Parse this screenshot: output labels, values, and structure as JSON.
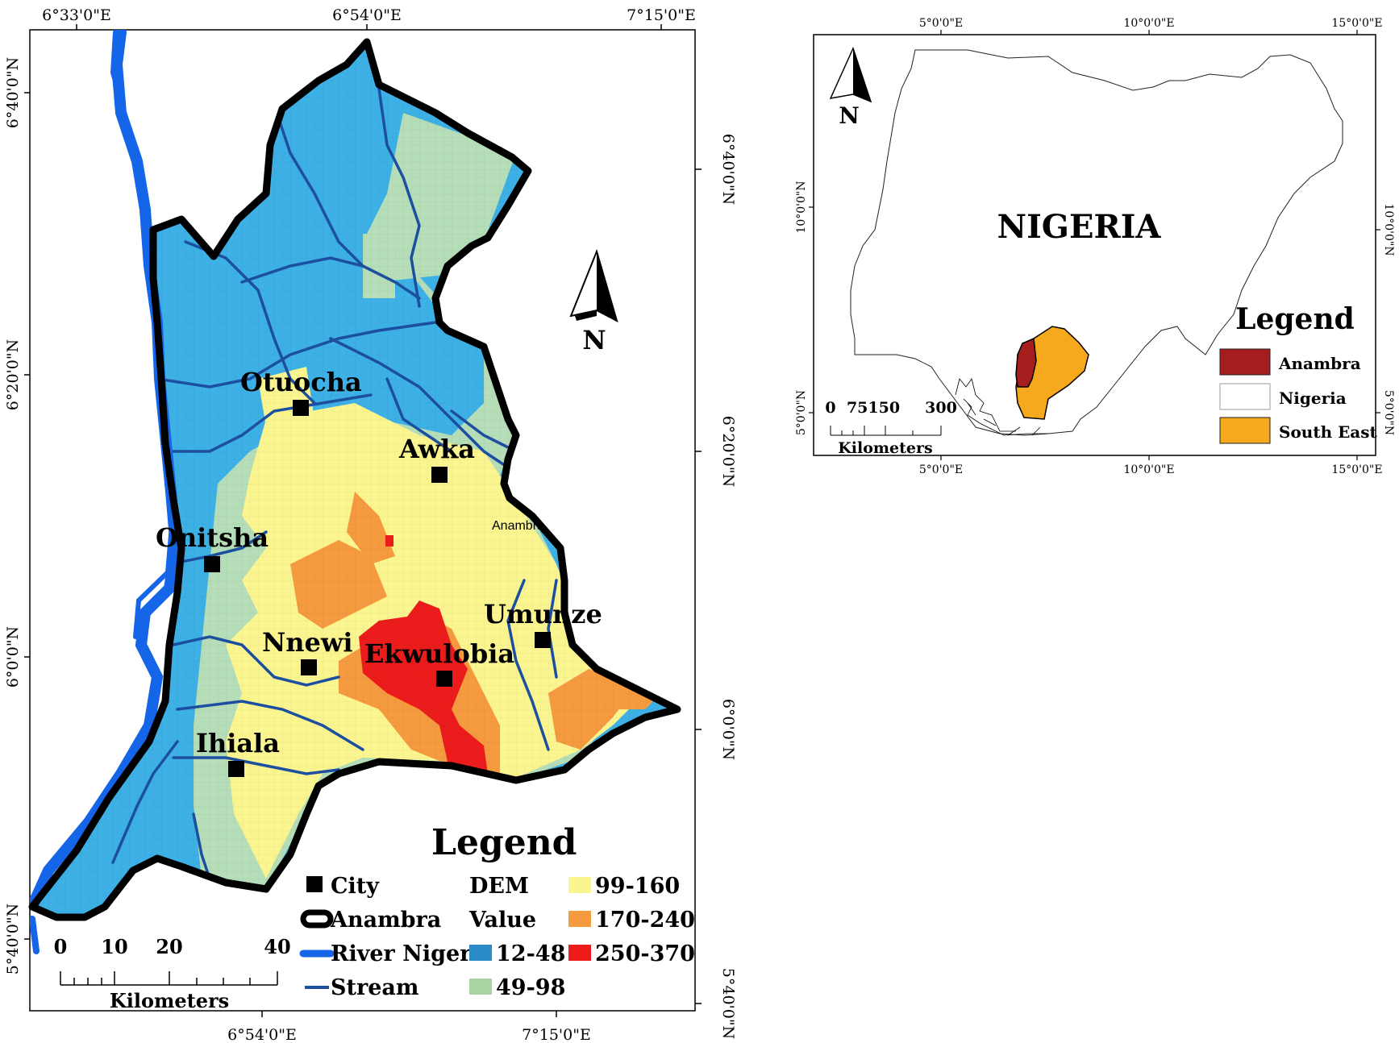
{
  "main_map": {
    "top_ticks": [
      "6°33'0\"E",
      "6°54'0\"E",
      "7°15'0\"E"
    ],
    "bottom_ticks": [
      "6°54'0\"E",
      "7°15'0\"E"
    ],
    "left_ticks": [
      "6°40'0\"N",
      "6°20'0\"N",
      "6°0'0\"N",
      "5°40'0\"N"
    ],
    "right_ticks": [
      "6°40'0\"N",
      "6°20'0\"N",
      "6°0'0\"N",
      "5°40'0\"N"
    ],
    "north_label": "N",
    "cities": [
      "Otuocha",
      "Awka",
      "Onitsha",
      "Umunze",
      "Nnewi",
      "Ekwulobia",
      "Ihiala"
    ],
    "small_label": "Anambra",
    "legend": {
      "title": "Legend",
      "city": "City",
      "anambra": "Anambra",
      "river": "River Niger",
      "stream": "Stream",
      "dem_1": "DEM",
      "dem_2": "Value",
      "classes": [
        "12-48",
        "49-98",
        "99-160",
        "170-240",
        "250-370"
      ]
    },
    "scale": {
      "ticks": [
        "0",
        "10",
        "20",
        "40"
      ],
      "unit": "Kilometers"
    }
  },
  "inset_map": {
    "top_ticks": [
      "5°0'0\"E",
      "10°0'0\"E",
      "15°0'0\"E"
    ],
    "bottom_ticks": [
      "5°0'0\"E",
      "10°0'0\"E",
      "15°0'0\"E"
    ],
    "left_ticks": [
      "10°0'0\"N",
      "5°0'0\"N"
    ],
    "right_ticks": [
      "10°0'0\"N",
      "5°0'0\"N"
    ],
    "north_label": "N",
    "country_label": "NIGERIA",
    "legend": {
      "title": "Legend",
      "items": [
        "Anambra",
        "Nigeria",
        "South East"
      ]
    },
    "scale": {
      "ticks": [
        "0",
        "75150",
        "300"
      ],
      "unit": "Kilometers"
    }
  },
  "colors": {
    "dem_12_48": "#3db0e6",
    "dem_49_98": "#b5ddb8",
    "dem_99_160": "#fbf590",
    "dem_170_240": "#f59a3f",
    "dem_250_370": "#ec1c1c",
    "river": "#1565e8",
    "stream": "#1c4fa0",
    "anambra": "#a51d1d",
    "south_east": "#f7a91d"
  },
  "icons": [
    "north-arrow-icon",
    "city-square-icon"
  ]
}
